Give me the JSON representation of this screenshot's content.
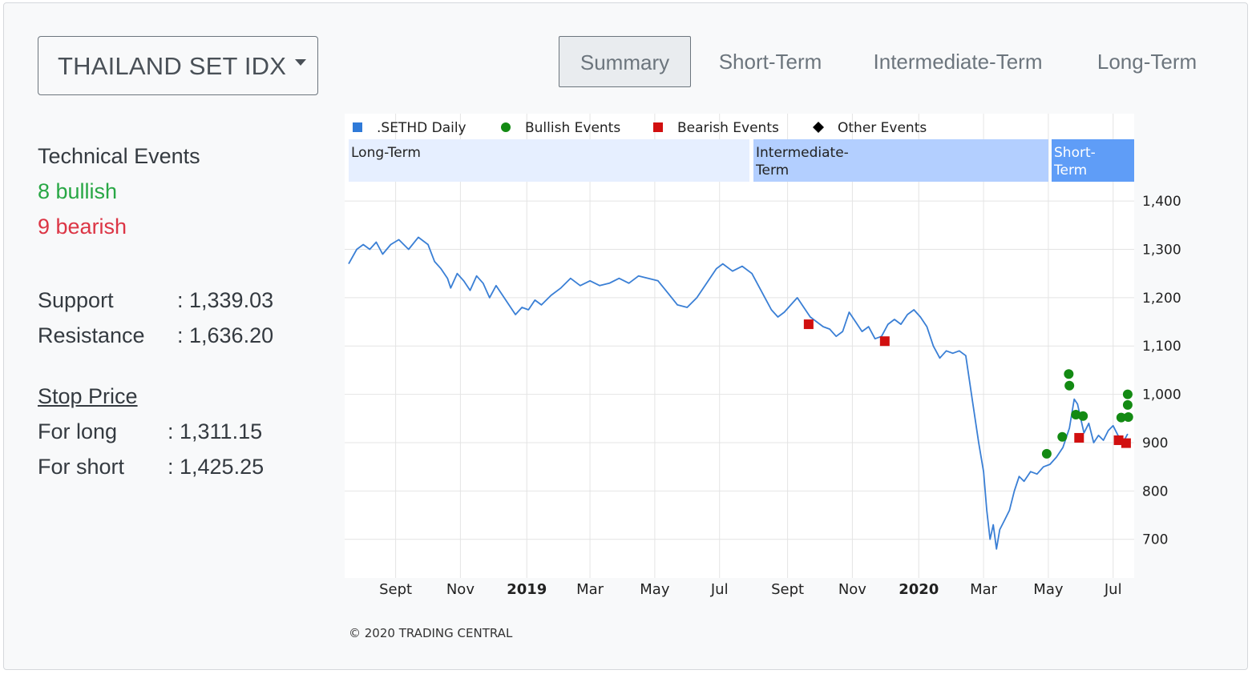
{
  "selector": {
    "label": "THAILAND SET IDX"
  },
  "tabs": [
    {
      "label": "Summary",
      "active": true
    },
    {
      "label": "Short-Term",
      "active": false
    },
    {
      "label": "Intermediate-Term",
      "active": false
    },
    {
      "label": "Long-Term",
      "active": false
    }
  ],
  "events": {
    "title": "Technical Events",
    "bullish": "8 bullish",
    "bearish": "9 bearish"
  },
  "levels": {
    "support_label": "Support",
    "support_value": ": 1,339.03",
    "resistance_label": "Resistance",
    "resistance_value": ": 1,636.20"
  },
  "stop": {
    "title": "Stop Price",
    "long_label": "For long",
    "long_value": ": 1,311.15",
    "short_label": "For short",
    "short_value": ": 1,425.25"
  },
  "colors": {
    "line": "#3a7fd5",
    "bullish": "#138a13",
    "bearish": "#d10f0f",
    "long_band": "#e6efff",
    "intermediate_band": "#b3cfff",
    "short_band": "#5f9df7"
  },
  "chart_data": {
    "type": "line",
    "series_name": ".SETHD Daily",
    "legend": [
      {
        "label": ".SETHD Daily",
        "marker": "square",
        "color": "#2f7ad8"
      },
      {
        "label": "Bullish Events",
        "marker": "circle",
        "color": "#138a13"
      },
      {
        "label": "Bearish Events",
        "marker": "square",
        "color": "#d10f0f"
      },
      {
        "label": "Other Events",
        "marker": "diamond",
        "color": "#000000"
      }
    ],
    "legend_position": "top",
    "term_bands": [
      "Long-Term",
      "Intermediate-Term",
      "Short-Term"
    ],
    "x_tick_labels": [
      {
        "label": "Sept",
        "t": 0.9,
        "bold": false
      },
      {
        "label": "Nov",
        "t": 2.9,
        "bold": false
      },
      {
        "label": "2019",
        "t": 4.95,
        "bold": true
      },
      {
        "label": "Mar",
        "t": 6.9,
        "bold": false
      },
      {
        "label": "May",
        "t": 8.9,
        "bold": false
      },
      {
        "label": "Jul",
        "t": 10.9,
        "bold": false
      },
      {
        "label": "Sept",
        "t": 13.0,
        "bold": false
      },
      {
        "label": "Nov",
        "t": 15.0,
        "bold": false
      },
      {
        "label": "2020",
        "t": 17.05,
        "bold": true
      },
      {
        "label": "Mar",
        "t": 19.05,
        "bold": false
      },
      {
        "label": "May",
        "t": 21.05,
        "bold": false
      },
      {
        "label": "Jul",
        "t": 23.05,
        "bold": false
      }
    ],
    "y_ticks": [
      700,
      800,
      900,
      1000,
      1100,
      1200,
      1300,
      1400
    ],
    "y_tick_labels": [
      "700",
      "800",
      "900",
      "1,000",
      "1,100",
      "1,200",
      "1,300",
      "1,400"
    ],
    "xlim": [
      -0.55,
      23.7
    ],
    "ylim": [
      620,
      1440
    ],
    "grid": true,
    "points": [
      [
        -0.55,
        1270
      ],
      [
        -0.3,
        1300
      ],
      [
        -0.1,
        1310
      ],
      [
        0.1,
        1300
      ],
      [
        0.3,
        1315
      ],
      [
        0.5,
        1290
      ],
      [
        0.75,
        1310
      ],
      [
        1.0,
        1320
      ],
      [
        1.3,
        1300
      ],
      [
        1.6,
        1325
      ],
      [
        1.9,
        1310
      ],
      [
        2.1,
        1275
      ],
      [
        2.3,
        1260
      ],
      [
        2.5,
        1240
      ],
      [
        2.6,
        1220
      ],
      [
        2.8,
        1250
      ],
      [
        3.0,
        1235
      ],
      [
        3.2,
        1215
      ],
      [
        3.4,
        1245
      ],
      [
        3.6,
        1230
      ],
      [
        3.8,
        1200
      ],
      [
        4.0,
        1225
      ],
      [
        4.2,
        1205
      ],
      [
        4.4,
        1185
      ],
      [
        4.6,
        1165
      ],
      [
        4.8,
        1180
      ],
      [
        5.0,
        1175
      ],
      [
        5.2,
        1195
      ],
      [
        5.4,
        1185
      ],
      [
        5.7,
        1205
      ],
      [
        6.0,
        1220
      ],
      [
        6.3,
        1240
      ],
      [
        6.6,
        1225
      ],
      [
        6.9,
        1235
      ],
      [
        7.2,
        1225
      ],
      [
        7.5,
        1230
      ],
      [
        7.8,
        1240
      ],
      [
        8.1,
        1230
      ],
      [
        8.4,
        1245
      ],
      [
        8.7,
        1240
      ],
      [
        9.0,
        1235
      ],
      [
        9.3,
        1210
      ],
      [
        9.6,
        1185
      ],
      [
        9.9,
        1180
      ],
      [
        10.2,
        1200
      ],
      [
        10.5,
        1230
      ],
      [
        10.8,
        1260
      ],
      [
        11.0,
        1270
      ],
      [
        11.3,
        1255
      ],
      [
        11.6,
        1265
      ],
      [
        11.9,
        1250
      ],
      [
        12.1,
        1225
      ],
      [
        12.3,
        1200
      ],
      [
        12.5,
        1175
      ],
      [
        12.7,
        1160
      ],
      [
        12.9,
        1170
      ],
      [
        13.1,
        1185
      ],
      [
        13.3,
        1200
      ],
      [
        13.5,
        1180
      ],
      [
        13.7,
        1160
      ],
      [
        13.9,
        1150
      ],
      [
        14.1,
        1140
      ],
      [
        14.3,
        1135
      ],
      [
        14.5,
        1120
      ],
      [
        14.7,
        1130
      ],
      [
        14.9,
        1170
      ],
      [
        15.1,
        1150
      ],
      [
        15.3,
        1130
      ],
      [
        15.5,
        1140
      ],
      [
        15.7,
        1115
      ],
      [
        15.9,
        1120
      ],
      [
        16.1,
        1145
      ],
      [
        16.3,
        1155
      ],
      [
        16.5,
        1145
      ],
      [
        16.7,
        1165
      ],
      [
        16.9,
        1175
      ],
      [
        17.1,
        1160
      ],
      [
        17.3,
        1140
      ],
      [
        17.5,
        1100
      ],
      [
        17.7,
        1075
      ],
      [
        17.9,
        1090
      ],
      [
        18.1,
        1085
      ],
      [
        18.3,
        1090
      ],
      [
        18.5,
        1080
      ],
      [
        18.7,
        990
      ],
      [
        18.9,
        900
      ],
      [
        19.05,
        840
      ],
      [
        19.15,
        760
      ],
      [
        19.25,
        700
      ],
      [
        19.35,
        730
      ],
      [
        19.45,
        680
      ],
      [
        19.55,
        720
      ],
      [
        19.7,
        740
      ],
      [
        19.85,
        760
      ],
      [
        20.0,
        800
      ],
      [
        20.15,
        830
      ],
      [
        20.3,
        820
      ],
      [
        20.5,
        840
      ],
      [
        20.7,
        835
      ],
      [
        20.9,
        850
      ],
      [
        21.1,
        855
      ],
      [
        21.3,
        870
      ],
      [
        21.5,
        890
      ],
      [
        21.7,
        930
      ],
      [
        21.85,
        990
      ],
      [
        21.95,
        980
      ],
      [
        22.05,
        950
      ],
      [
        22.15,
        920
      ],
      [
        22.3,
        940
      ],
      [
        22.45,
        900
      ],
      [
        22.6,
        915
      ],
      [
        22.75,
        905
      ],
      [
        22.9,
        925
      ],
      [
        23.05,
        935
      ],
      [
        23.2,
        915
      ],
      [
        23.35,
        900
      ],
      [
        23.5,
        918
      ]
    ],
    "bullish_events": [
      [
        21.0,
        877
      ],
      [
        21.48,
        912
      ],
      [
        21.68,
        1042
      ],
      [
        21.7,
        1018
      ],
      [
        21.9,
        958
      ],
      [
        22.12,
        955
      ],
      [
        23.3,
        952
      ],
      [
        23.52,
        953
      ],
      [
        23.5,
        978
      ],
      [
        23.5,
        1000
      ]
    ],
    "bearish_events": [
      [
        13.65,
        1145
      ],
      [
        16.0,
        1110
      ],
      [
        22.0,
        910
      ],
      [
        23.22,
        905
      ],
      [
        23.45,
        899
      ]
    ],
    "other_events": [],
    "copyright": "© 2020 TRADING CENTRAL"
  }
}
